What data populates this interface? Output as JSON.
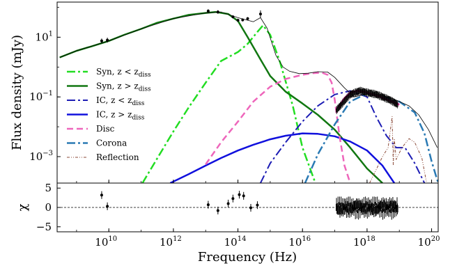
{
  "chart_data": [
    {
      "type": "line",
      "panel": "spectrum",
      "xlabel": "Frequency (Hz)",
      "ylabel": "Flux density (mJy)",
      "xscale": "log",
      "yscale": "log",
      "xlim": [
        250000000.0,
        1.6e+20
      ],
      "ylim": [
        0.00013,
        150
      ],
      "x_ticks": [
        {
          "value": 10000000000.0,
          "base": "10",
          "exp": "10"
        },
        {
          "value": 1000000000000.0,
          "base": "10",
          "exp": "12"
        },
        {
          "value": 100000000000000.0,
          "base": "10",
          "exp": "14"
        },
        {
          "value": 1e+16,
          "base": "10",
          "exp": "16"
        },
        {
          "value": 1e+18,
          "base": "10",
          "exp": "18"
        },
        {
          "value": 1e+20,
          "base": "10",
          "exp": "20"
        }
      ],
      "y_ticks": [
        {
          "value": 10,
          "base": "10",
          "exp": "1"
        },
        {
          "value": 0.1,
          "base": "10",
          "exp": "−1"
        },
        {
          "value": 0.001,
          "base": "10",
          "exp": "−3"
        }
      ],
      "legend_position": "center-left",
      "legend": [
        {
          "label": "Syn, z < z",
          "sub": "diss",
          "color": "#22dd22",
          "dash": "12 4 3 4",
          "width": 2.5
        },
        {
          "label": "Syn, z > z",
          "sub": "diss",
          "color": "#117711",
          "dash": "",
          "width": 2.5
        },
        {
          "label": "IC, z < z",
          "sub": "diss",
          "color": "#1c1cb4",
          "dash": "12 4 3 4",
          "width": 2
        },
        {
          "label": "IC, z > z",
          "sub": "diss",
          "color": "#1010dd",
          "dash": "",
          "width": 2.5
        },
        {
          "label": "Disc",
          "sub": "",
          "color": "#ee66bb",
          "dash": "9 5",
          "width": 2.5
        },
        {
          "label": "Corona",
          "sub": "",
          "color": "#2a7ab4",
          "dash": "12 4 3 4",
          "width": 2.5
        },
        {
          "label": "Reflection",
          "sub": "",
          "color": "#8b4a38",
          "dash": "4 2 1 2 1 2",
          "width": 1
        }
      ],
      "series": [
        {
          "key": "syn_in",
          "color": "#22dd22",
          "dash": "12 4 3 4",
          "width": 2.5,
          "x": [
            110000000000.0,
            300000000000.0,
            1000000000000.0,
            3000000000000.0,
            10000000000000.0,
            30000000000000.0,
            100000000000000.0,
            200000000000000.0,
            400000000000000.0,
            600000000000000.0,
            1000000000000000.0,
            2000000000000000.0,
            5000000000000000.0,
            1e+16,
            2.5e+16
          ],
          "y": [
            0.00013,
            0.0008,
            0.007,
            0.045,
            0.3,
            1.6,
            3.2,
            6,
            15,
            25,
            12,
            1.5,
            0.05,
            0.002,
            0.00013
          ]
        },
        {
          "key": "syn_out",
          "color": "#117711",
          "dash": "",
          "width": 2.5,
          "x": [
            300000000.0,
            1000000000.0,
            3000000000.0,
            10000000000.0,
            30000000000.0,
            100000000000.0,
            300000000000.0,
            1000000000000.0,
            3000000000000.0,
            10000000000000.0,
            20000000000000.0,
            50000000000000.0,
            100000000000000.0,
            200000000000000.0,
            500000000000000.0,
            1000000000000000.0,
            3000000000000000.0,
            1e+16,
            3e+16,
            1e+17,
            3e+17,
            1e+18,
            3e+18
          ],
          "y": [
            2.1,
            3.5,
            5,
            7.5,
            12,
            19,
            30,
            42,
            56,
            65,
            70,
            60,
            35,
            10,
            1.8,
            0.5,
            0.15,
            0.06,
            0.025,
            0.008,
            0.002,
            0.0004,
            0.00013
          ]
        },
        {
          "key": "ic_in",
          "color": "#1c1cb4",
          "dash": "12 4 3 4",
          "width": 2,
          "x": [
            500000000000000.0,
            1000000000000000.0,
            3000000000000000.0,
            1e+16,
            3e+16,
            1e+17,
            3e+17,
            1e+18,
            2e+18,
            4e+18,
            8e+18,
            1.5e+19,
            3e+19,
            6e+19
          ],
          "y": [
            0.00013,
            0.0006,
            0.003,
            0.015,
            0.05,
            0.12,
            0.16,
            0.1,
            0.02,
            0.005,
            0.002,
            0.002,
            0.0006,
            0.00013
          ]
        },
        {
          "key": "ic_out",
          "color": "#1010dd",
          "dash": "",
          "width": 2.5,
          "x": [
            800000000000.0,
            3000000000000.0,
            10000000000000.0,
            30000000000000.0,
            100000000000000.0,
            300000000000000.0,
            1000000000000000.0,
            3000000000000000.0,
            1e+16,
            3e+16,
            1e+17,
            3e+17,
            1e+18,
            3e+18,
            7e+18
          ],
          "y": [
            0.00013,
            0.00026,
            0.0005,
            0.0009,
            0.0016,
            0.0025,
            0.0038,
            0.005,
            0.006,
            0.0058,
            0.0048,
            0.0032,
            0.0016,
            0.0005,
            0.00013
          ]
        },
        {
          "key": "disc",
          "color": "#ee66bb",
          "dash": "9 5",
          "width": 2.5,
          "x": [
            10000000000000.0,
            30000000000000.0,
            100000000000000.0,
            300000000000000.0,
            1000000000000000.0,
            3000000000000000.0,
            1e+16,
            2e+16,
            4e+16,
            6e+16,
            8e+16,
            1e+17,
            1.4e+17,
            2e+17,
            3e+17
          ],
          "y": [
            0.00055,
            0.003,
            0.015,
            0.07,
            0.22,
            0.4,
            0.55,
            0.62,
            0.65,
            0.55,
            0.3,
            0.08,
            0.005,
            0.0005,
            0.00013
          ]
        },
        {
          "key": "corona",
          "color": "#2a7ab4",
          "dash": "12 4 3 4",
          "width": 2.5,
          "x": [
            1.2e+16,
            3e+16,
            1e+17,
            3e+17,
            1e+18,
            3e+18,
            1e+19,
            3e+19,
            6e+19,
            1e+20,
            1.6e+20
          ],
          "y": [
            0.00013,
            0.0012,
            0.012,
            0.07,
            0.13,
            0.1,
            0.07,
            0.03,
            0.006,
            0.0007,
            0.00013
          ]
        },
        {
          "key": "reflection",
          "color": "#8b4a38",
          "dash": "4 2 1 2 1 2",
          "width": 1,
          "x": [
            1.2e+18,
            2e+18,
            3e+18,
            4.5e+18,
            6e+18,
            6.5e+18,
            7e+18,
            8e+18,
            1.2e+19,
            2e+19,
            3e+19,
            5e+19,
            7e+19
          ],
          "y": [
            0.00013,
            0.0004,
            0.001,
            0.002,
            0.022,
            0.0005,
            0.004,
            0.0008,
            0.002,
            0.004,
            0.003,
            0.0009,
            0.00013
          ]
        },
        {
          "key": "total",
          "color": "#000000",
          "dash": "",
          "width": 0.8,
          "x": [
            300000000.0,
            1000000000.0,
            10000000000.0,
            100000000000.0,
            1000000000000.0,
            10000000000000.0,
            30000000000000.0,
            100000000000000.0,
            300000000000000.0,
            500000000000000.0,
            800000000000000.0,
            1500000000000000.0,
            2500000000000000.0,
            4000000000000000.0,
            8000000000000000.0,
            1.5e+16,
            3e+16,
            6e+16,
            1e+17,
            2e+17,
            4e+17,
            8e+17,
            1.5e+18,
            3e+18,
            6e+18,
            1e+19,
            2e+19,
            4e+19,
            8e+19,
            1.5e+20
          ],
          "y": [
            2.1,
            3.5,
            7.5,
            19,
            42,
            65,
            70,
            45,
            33,
            45,
            20,
            2.5,
            1.0,
            0.72,
            0.6,
            0.62,
            0.7,
            0.68,
            0.45,
            0.2,
            0.1,
            0.12,
            0.13,
            0.11,
            0.09,
            0.07,
            0.05,
            0.025,
            0.008,
            0.002
          ]
        },
        {
          "key": "xray_model",
          "color": "#dd3399",
          "dash": "",
          "width": 3,
          "x": [
            1.3e+17,
            2e+17,
            3e+17,
            5e+17,
            8e+17,
            1.2e+18,
            2e+18,
            3e+18,
            5e+18,
            7e+18,
            1e+19
          ],
          "y": [
            0.045,
            0.09,
            0.14,
            0.16,
            0.15,
            0.13,
            0.11,
            0.095,
            0.075,
            0.065,
            0.055
          ]
        }
      ],
      "points": [
        {
          "x": 6000000000.0,
          "y": 7.5,
          "err": 0.08
        },
        {
          "x": 9000000000.0,
          "y": 8,
          "err": 0.08
        },
        {
          "x": 12000000000000.0,
          "y": 75,
          "err": 0.06
        },
        {
          "x": 24000000000000.0,
          "y": 70,
          "err": 0.06
        },
        {
          "x": 70000000000000.0,
          "y": 48,
          "err": 0.05
        },
        {
          "x": 100000000000000.0,
          "y": 37,
          "err": 0.05
        },
        {
          "x": 140000000000000.0,
          "y": 38,
          "err": 0.05
        },
        {
          "x": 200000000000000.0,
          "y": 42,
          "err": 0.05
        },
        {
          "x": 500000000000000.0,
          "y": 60,
          "err": 0.12
        }
      ],
      "xray_band": {
        "x_start": 1.1e+17,
        "x_end": 9e+18,
        "y": [
          0.035,
          0.12,
          0.16,
          0.14,
          0.12,
          0.1,
          0.08,
          0.065,
          0.055
        ],
        "x": [
          1.1e+17,
          3e+17,
          6e+17,
          1e+18,
          2e+18,
          3e+18,
          5e+18,
          7e+18,
          9e+18
        ]
      }
    },
    {
      "type": "scatter",
      "panel": "residuals",
      "ylabel": "χ",
      "xscale": "log",
      "xlim": [
        250000000.0,
        1.6e+20
      ],
      "ylim": [
        -6.3,
        6.3
      ],
      "y_ticks": [
        {
          "value": 5,
          "label": "5"
        },
        {
          "value": 0,
          "label": "0"
        },
        {
          "value": -5,
          "label": "−5"
        }
      ],
      "zero_line": true,
      "points": [
        {
          "x": 6000000000.0,
          "y": 3.2,
          "err": 1
        },
        {
          "x": 9000000000.0,
          "y": 0.3,
          "err": 1
        },
        {
          "x": 12000000000000.0,
          "y": 0.7,
          "err": 1
        },
        {
          "x": 24000000000000.0,
          "y": -0.8,
          "err": 1
        },
        {
          "x": 50000000000000.0,
          "y": 1,
          "err": 1
        },
        {
          "x": 70000000000000.0,
          "y": 2.3,
          "err": 1
        },
        {
          "x": 110000000000000.0,
          "y": 3.3,
          "err": 1
        },
        {
          "x": 150000000000000.0,
          "y": 3,
          "err": 1
        },
        {
          "x": 250000000000000.0,
          "y": -0.1,
          "err": 1
        },
        {
          "x": 400000000000000.0,
          "y": 0.6,
          "err": 1
        }
      ],
      "xray_band": {
        "x_start": 1.1e+17,
        "x_end": 9e+18,
        "y_min": -3.5,
        "y_max": 2.8,
        "spread": 1.8
      }
    }
  ]
}
